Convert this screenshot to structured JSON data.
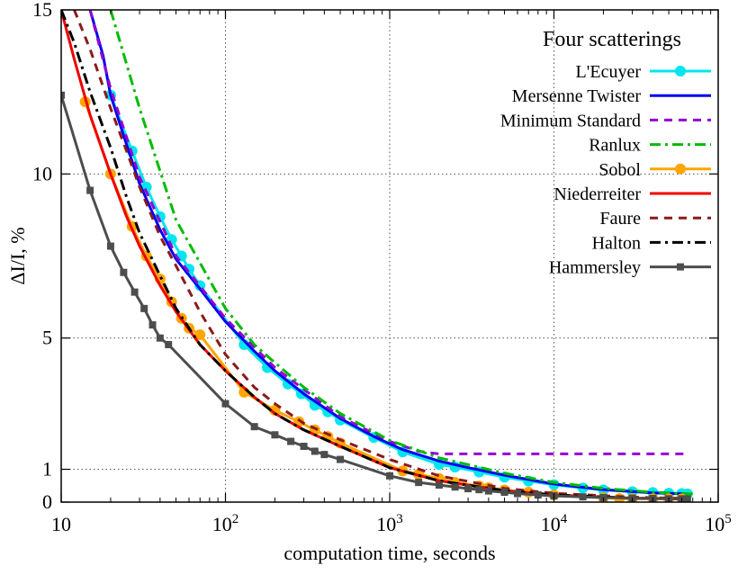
{
  "chart_data": {
    "type": "line",
    "title": "",
    "legend_title": "Four scatterings",
    "legend_position": "top-right",
    "xlabel": "computation time, seconds",
    "ylabel": "ΔI/I, %",
    "xscale": "log",
    "xlim": [
      10,
      100000
    ],
    "ylim": [
      0,
      15
    ],
    "grid": true,
    "x_ticks": [
      {
        "value": 10,
        "base": "10",
        "exp": ""
      },
      {
        "value": 100,
        "base": "10",
        "exp": "2"
      },
      {
        "value": 1000,
        "base": "10",
        "exp": "3"
      },
      {
        "value": 10000,
        "base": "10",
        "exp": "4"
      },
      {
        "value": 100000,
        "base": "10",
        "exp": "5"
      }
    ],
    "y_ticks": [
      {
        "value": 0,
        "label": "0"
      },
      {
        "value": 1,
        "label": "1"
      },
      {
        "value": 5,
        "label": "5"
      },
      {
        "value": 10,
        "label": "10"
      },
      {
        "value": 15,
        "label": "15"
      }
    ],
    "series": [
      {
        "name": "L'Ecuyer",
        "color": "#00e5ee",
        "style": "solid-circle",
        "x": [
          20,
          27,
          33,
          40,
          47,
          54,
          60,
          70,
          130,
          180,
          240,
          290,
          350,
          420,
          500,
          800,
          1200,
          2000,
          2500,
          3500,
          5000,
          7000,
          10000,
          15000,
          20000,
          30000,
          40000,
          50000,
          60000,
          65000
        ],
        "y": [
          12.4,
          10.7,
          9.6,
          8.7,
          8.0,
          7.5,
          7.1,
          6.6,
          4.8,
          4.1,
          3.6,
          3.3,
          2.95,
          2.75,
          2.5,
          1.97,
          1.53,
          1.15,
          1.07,
          0.92,
          0.76,
          0.64,
          0.53,
          0.43,
          0.37,
          0.32,
          0.29,
          0.27,
          0.26,
          0.25
        ]
      },
      {
        "name": "Mersenne Twister",
        "color": "#0000ee",
        "style": "solid",
        "x": [
          15,
          18,
          20,
          25,
          30,
          40,
          50,
          70,
          100,
          150,
          200,
          300,
          500,
          800,
          1200,
          2000,
          3000,
          5000,
          10000,
          20000,
          40000,
          65000
        ],
        "y": [
          15,
          13.6,
          12.4,
          10.9,
          9.7,
          8.3,
          7.4,
          6.5,
          5.5,
          4.6,
          4.0,
          3.3,
          2.55,
          2.0,
          1.6,
          1.25,
          1.05,
          0.82,
          0.55,
          0.38,
          0.28,
          0.25
        ]
      },
      {
        "name": "Minimum Standard",
        "color": "#9400d3",
        "style": "dashed",
        "x": [
          15,
          20,
          30,
          50,
          100,
          200,
          500,
          1000,
          1500,
          2000,
          5000,
          10000,
          30000,
          65000
        ],
        "y": [
          15,
          12.6,
          9.9,
          7.5,
          5.6,
          4.1,
          2.6,
          1.85,
          1.55,
          1.47,
          1.47,
          1.47,
          1.47,
          1.47
        ]
      },
      {
        "name": "Ranlux",
        "color": "#00bb00",
        "style": "dashdot",
        "x": [
          20,
          30,
          50,
          100,
          150,
          200,
          300,
          500,
          1000,
          2000,
          5000,
          10000,
          20000,
          40000,
          70000
        ],
        "y": [
          15,
          12.0,
          8.6,
          5.9,
          4.8,
          4.25,
          3.5,
          2.7,
          1.88,
          1.35,
          0.88,
          0.6,
          0.42,
          0.3,
          0.25
        ]
      },
      {
        "name": "Sobol",
        "color": "#ffa500",
        "style": "solid-circle",
        "x": [
          14,
          20,
          27,
          33,
          40,
          47,
          54,
          60,
          70,
          130,
          200,
          280,
          350,
          420,
          500,
          1200,
          1500,
          2000,
          2500,
          3500,
          4000,
          5000,
          7000,
          10000,
          20000,
          25000,
          30000,
          40000,
          50000,
          60000
        ],
        "y": [
          12.2,
          10.0,
          8.4,
          7.5,
          6.8,
          6.1,
          5.6,
          5.3,
          5.1,
          3.35,
          2.8,
          2.45,
          2.2,
          2.0,
          1.8,
          0.95,
          0.85,
          0.72,
          0.6,
          0.49,
          0.44,
          0.37,
          0.3,
          0.22,
          0.13,
          0.11,
          0.1,
          0.1,
          0.1,
          0.1
        ]
      },
      {
        "name": "Niederreiter",
        "color": "#ee0000",
        "style": "solid",
        "x": [
          10,
          12,
          15,
          20,
          25,
          30,
          40,
          50,
          70,
          100,
          150,
          200,
          300,
          500,
          1000,
          2000,
          5000,
          10000,
          30000,
          65000
        ],
        "y": [
          15,
          13.5,
          11.8,
          10.0,
          8.7,
          7.8,
          6.6,
          5.8,
          4.8,
          4.0,
          3.2,
          2.7,
          2.2,
          1.7,
          1.05,
          0.65,
          0.35,
          0.22,
          0.12,
          0.1
        ]
      },
      {
        "name": "Faure",
        "color": "#8b1a1a",
        "style": "dashed",
        "x": [
          12,
          15,
          20,
          25,
          30,
          40,
          50,
          70,
          100,
          150,
          200,
          300,
          500,
          1000,
          2000,
          5000,
          10000,
          30000,
          65000
        ],
        "y": [
          15,
          13.8,
          12.0,
          10.7,
          9.6,
          8.1,
          7.2,
          5.8,
          4.5,
          3.5,
          3.0,
          2.4,
          1.9,
          1.3,
          0.8,
          0.42,
          0.27,
          0.15,
          0.11
        ]
      },
      {
        "name": "Halton",
        "color": "#000000",
        "style": "dashdot",
        "x": [
          10,
          12,
          15,
          20,
          25,
          30,
          40,
          50,
          70,
          100,
          150,
          200,
          300,
          500,
          1000,
          2000,
          5000,
          10000,
          30000,
          65000
        ],
        "y": [
          15,
          14.0,
          12.5,
          10.8,
          9.3,
          8.2,
          6.9,
          5.9,
          4.8,
          4.0,
          3.2,
          2.7,
          2.2,
          1.7,
          1.05,
          0.65,
          0.35,
          0.22,
          0.12,
          0.1
        ]
      },
      {
        "name": "Hammersley",
        "color": "#4d4d4d",
        "style": "solid-square",
        "x": [
          10,
          15,
          20,
          24,
          28,
          32,
          36,
          40,
          45,
          100,
          150,
          200,
          250,
          300,
          350,
          400,
          500,
          1000,
          1500,
          2000,
          2500,
          3000,
          3500,
          4000,
          5000,
          6000,
          8000,
          10000,
          15000,
          20000,
          30000,
          40000,
          50000,
          60000,
          65000
        ],
        "y": [
          12.4,
          9.5,
          7.8,
          7.0,
          6.4,
          5.9,
          5.4,
          5.0,
          4.8,
          3.0,
          2.3,
          2.05,
          1.85,
          1.7,
          1.55,
          1.45,
          1.3,
          0.8,
          0.6,
          0.52,
          0.46,
          0.41,
          0.38,
          0.34,
          0.3,
          0.26,
          0.22,
          0.19,
          0.16,
          0.14,
          0.12,
          0.11,
          0.1,
          0.1,
          0.1
        ]
      }
    ]
  }
}
